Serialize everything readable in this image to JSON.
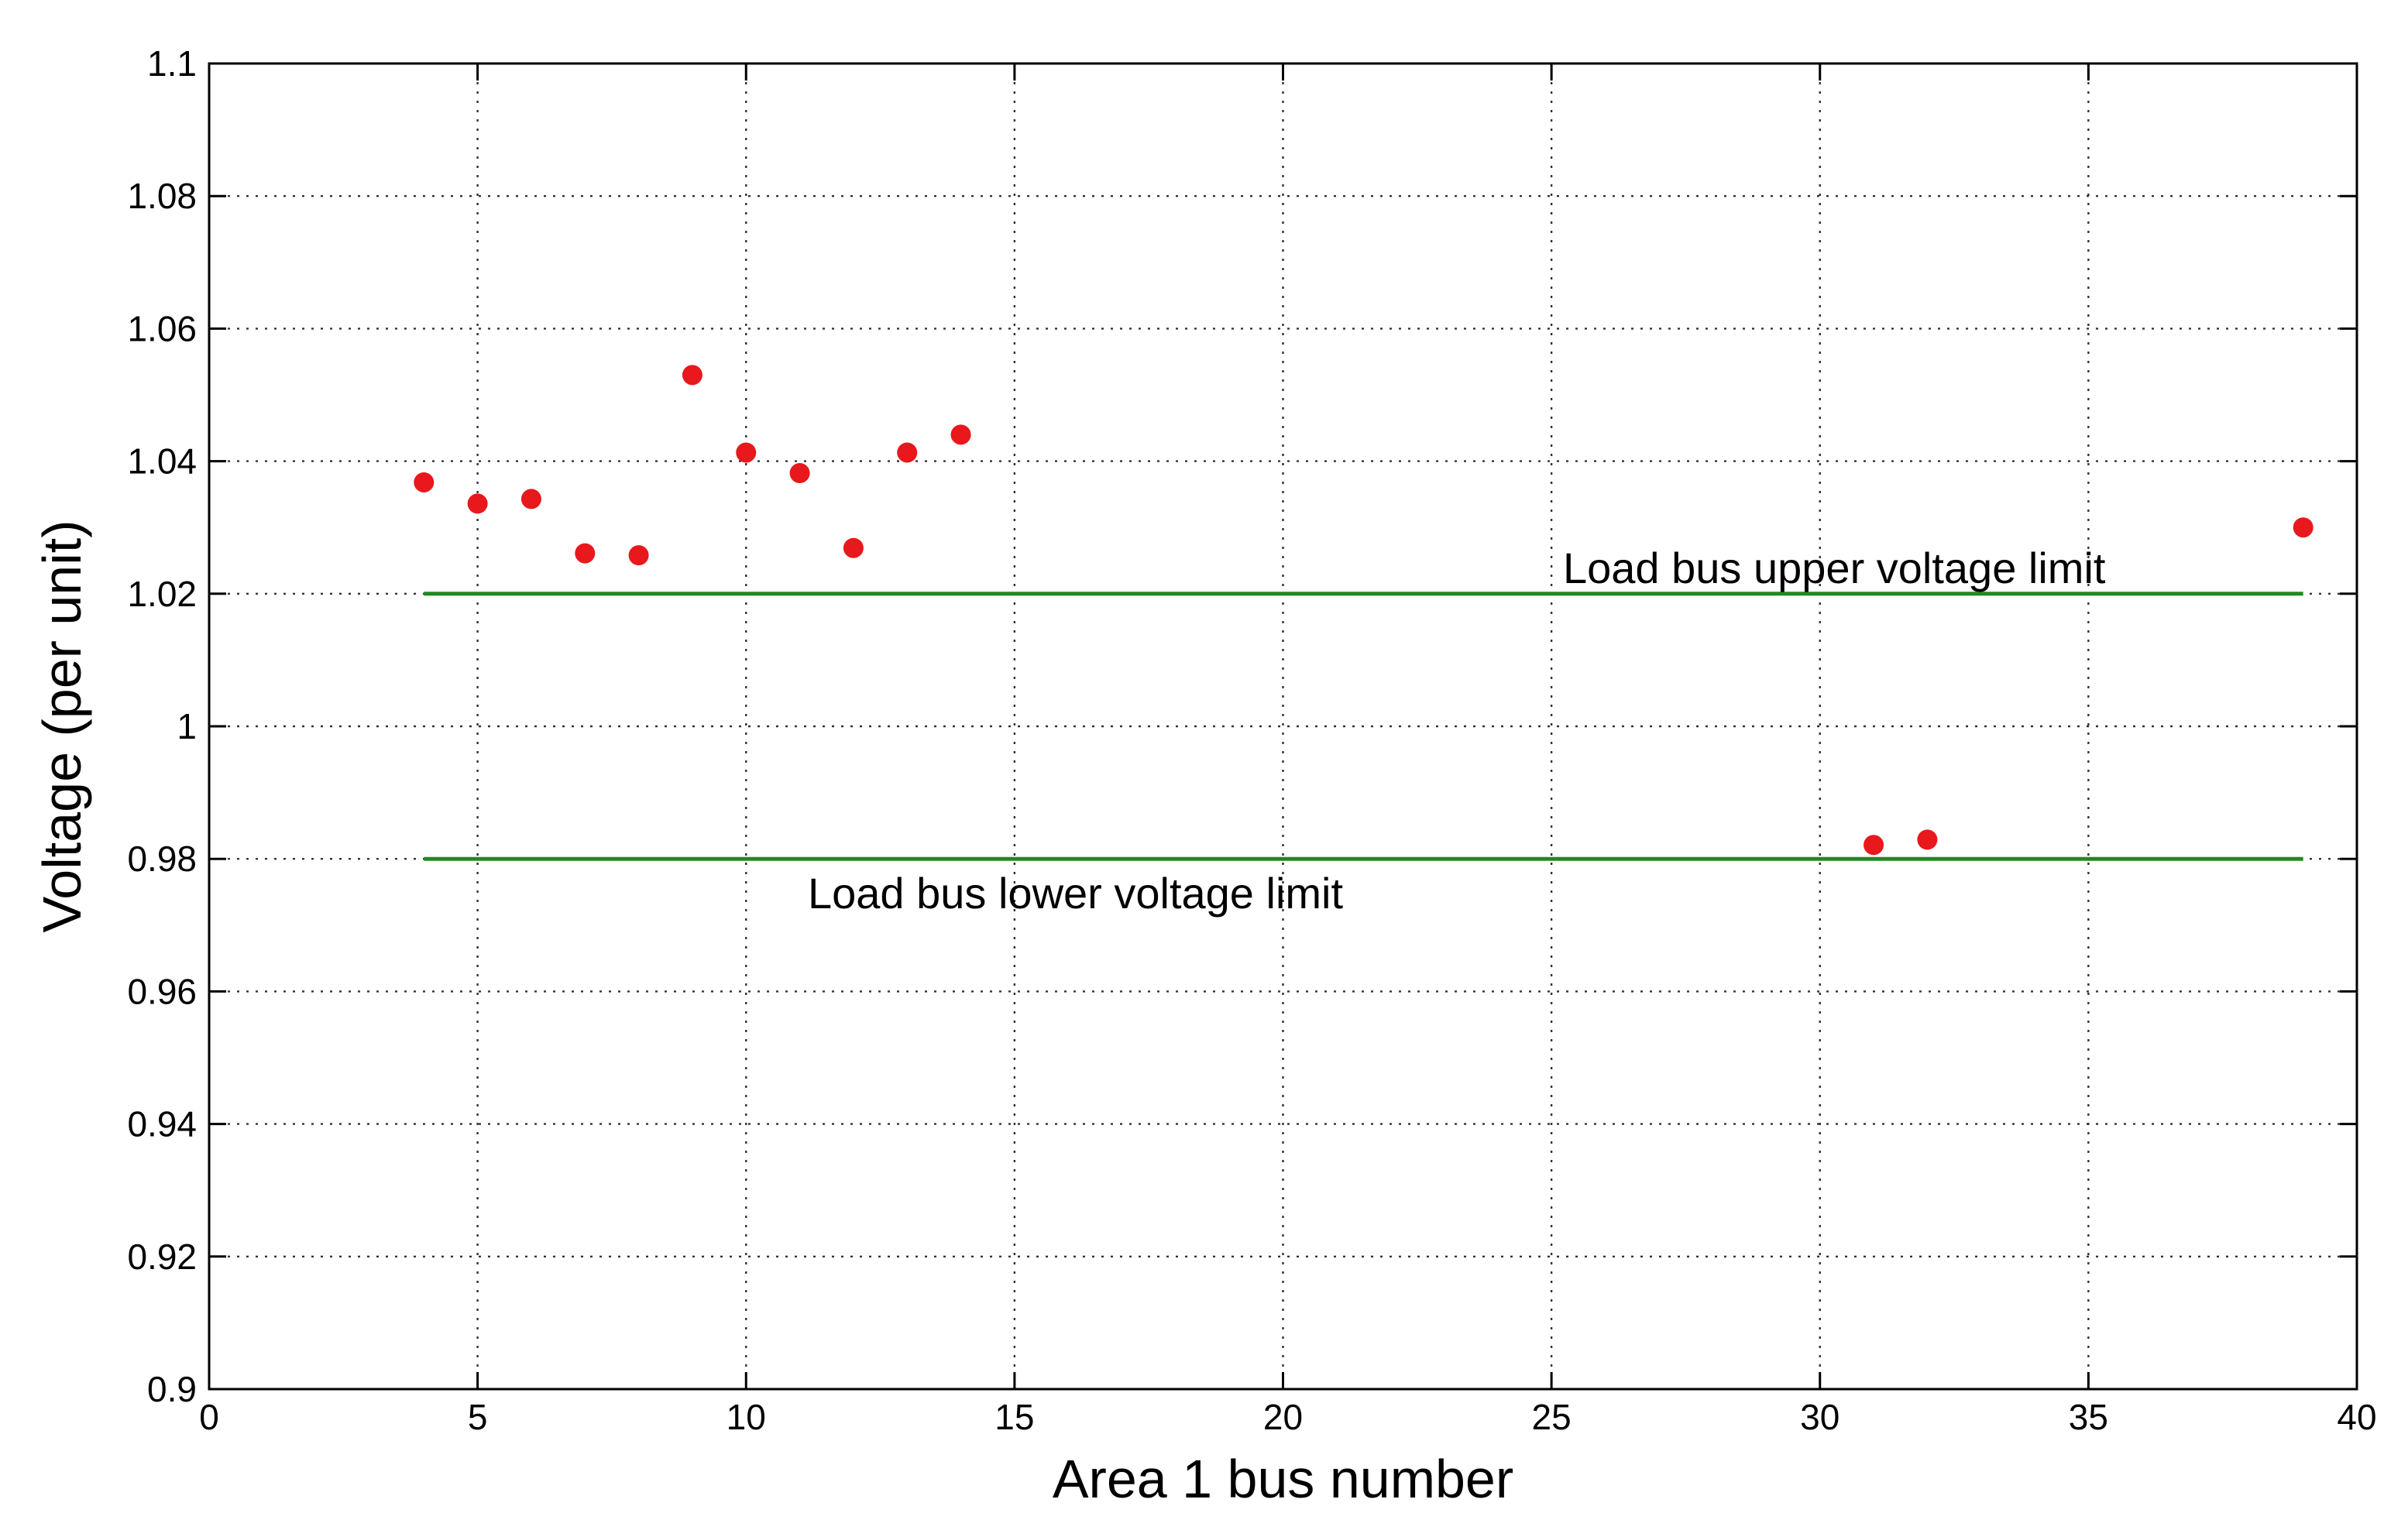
{
  "chart_data": {
    "type": "scatter",
    "title": "",
    "xlabel": "Area 1 bus number",
    "ylabel": "Voltage (per unit)",
    "xlim": [
      0,
      40
    ],
    "ylim": [
      0.9,
      1.1
    ],
    "grid": true,
    "x_ticks": [
      "0",
      "5",
      "10",
      "15",
      "20",
      "25",
      "30",
      "35",
      "40"
    ],
    "y_ticks": [
      "0.9",
      "0.92",
      "0.94",
      "0.96",
      "0.98",
      "1",
      "1.02",
      "1.04",
      "1.06",
      "1.08",
      "1.1"
    ],
    "series": [
      {
        "color": "#e8181c",
        "x": [
          4,
          5,
          6,
          7,
          8,
          9,
          10,
          11,
          12,
          13,
          14,
          31,
          32,
          39
        ],
        "y": [
          1.0368,
          1.0336,
          1.0343,
          1.0261,
          1.0258,
          1.053,
          1.0413,
          1.0382,
          1.0269,
          1.0413,
          1.044,
          0.9821,
          0.9829,
          1.03
        ]
      }
    ],
    "reference_lines": [
      {
        "label": "Load bus upper voltage limit",
        "y": 1.02,
        "x_range": [
          4,
          39
        ],
        "color": "#1f8a1f"
      },
      {
        "label": "Load bus lower voltage limit",
        "y": 0.98,
        "x_range": [
          4,
          39
        ],
        "color": "#1f8a1f"
      }
    ]
  }
}
